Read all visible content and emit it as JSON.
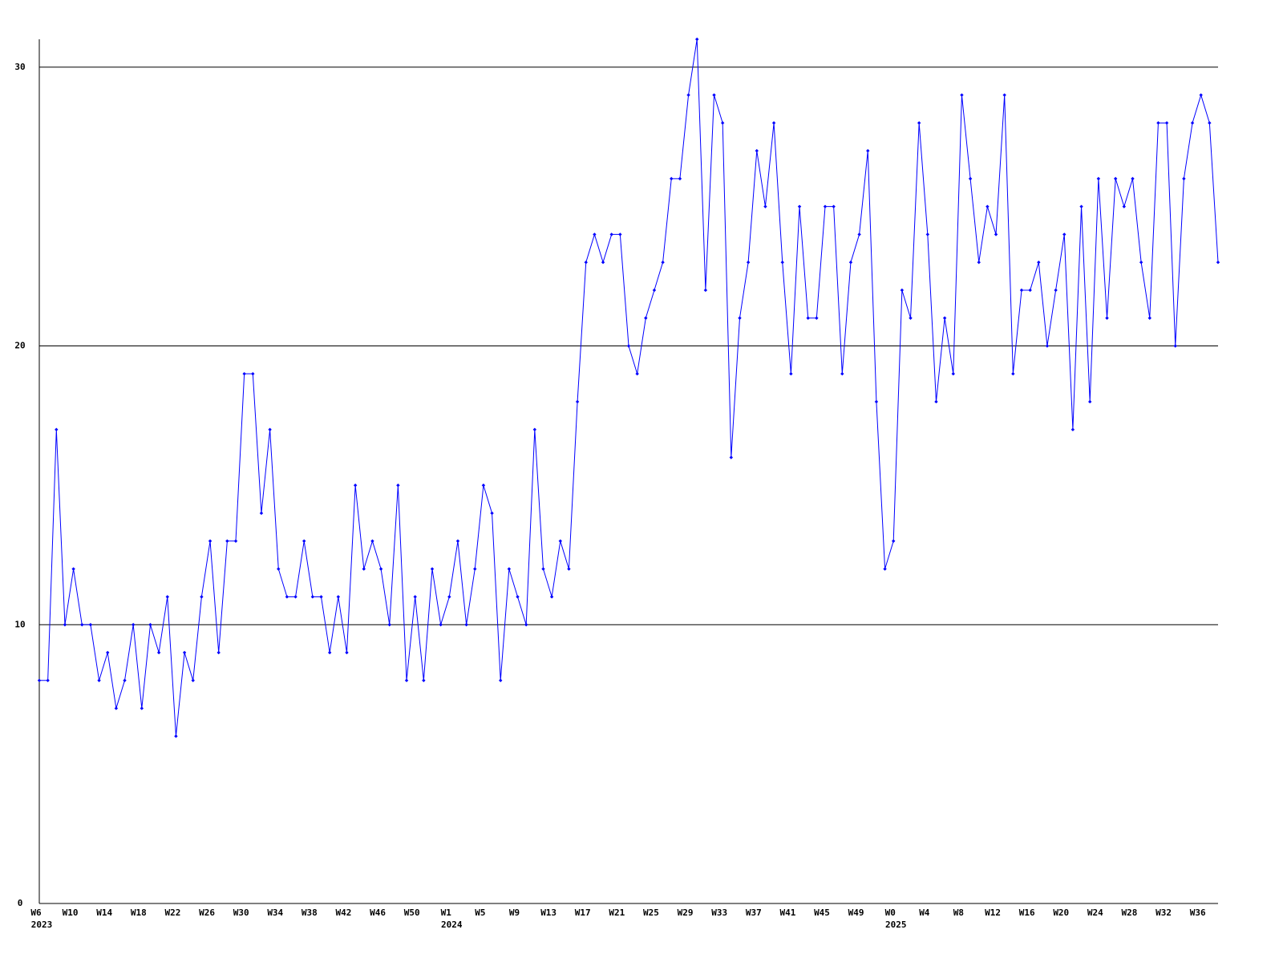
{
  "chart_data": {
    "type": "line",
    "categories": [
      "W6",
      null,
      null,
      null,
      "W10",
      null,
      null,
      null,
      "W14",
      null,
      null,
      null,
      "W18",
      null,
      null,
      null,
      "W22",
      null,
      null,
      null,
      "W26",
      null,
      null,
      null,
      "W30",
      null,
      null,
      null,
      "W34",
      null,
      null,
      null,
      "W38",
      null,
      null,
      null,
      "W42",
      null,
      null,
      null,
      "W46",
      null,
      null,
      null,
      "W50",
      null,
      null,
      null,
      "W1",
      null,
      null,
      null,
      "W5",
      null,
      null,
      null,
      "W9",
      null,
      null,
      null,
      "W13",
      null,
      null,
      null,
      "W17",
      null,
      null,
      null,
      "W21",
      null,
      null,
      null,
      "W25",
      null,
      null,
      null,
      "W29",
      null,
      null,
      null,
      "W33",
      null,
      null,
      null,
      "W37",
      null,
      null,
      null,
      "W41",
      null,
      null,
      null,
      "W45",
      null,
      null,
      null,
      "W49",
      null,
      null,
      null,
      "W0",
      null,
      null,
      null,
      "W4",
      null,
      null,
      null,
      "W8",
      null,
      null,
      null,
      "W12",
      null,
      null,
      null,
      "W16",
      null,
      null,
      null,
      "W20",
      null,
      null,
      null,
      "W24",
      null,
      null,
      null,
      "W28",
      null,
      null,
      null,
      "W32",
      null,
      null,
      null,
      "W36",
      null,
      null
    ],
    "x_sublabels": [
      "2023",
      null,
      null,
      null,
      null,
      null,
      null,
      null,
      null,
      null,
      null,
      null,
      null,
      null,
      null,
      null,
      null,
      null,
      null,
      null,
      null,
      null,
      null,
      null,
      null,
      null,
      null,
      null,
      null,
      null,
      null,
      null,
      null,
      null,
      null,
      null,
      null,
      null,
      null,
      null,
      null,
      null,
      null,
      null,
      null,
      null,
      null,
      null,
      "2024",
      null,
      null,
      null,
      null,
      null,
      null,
      null,
      null,
      null,
      null,
      null,
      null,
      null,
      null,
      null,
      null,
      null,
      null,
      null,
      null,
      null,
      null,
      null,
      null,
      null,
      null,
      null,
      null,
      null,
      null,
      null,
      null,
      null,
      null,
      null,
      null,
      null,
      null,
      null,
      null,
      null,
      null,
      null,
      null,
      null,
      null,
      null,
      null,
      null,
      null,
      null,
      "2025",
      null,
      null,
      null,
      null,
      null,
      null,
      null,
      null,
      null,
      null,
      null,
      null,
      null,
      null,
      null,
      null,
      null,
      null,
      null,
      null,
      null,
      null,
      null,
      null,
      null,
      null,
      null,
      null,
      null,
      null,
      null,
      null,
      null,
      null,
      null,
      null,
      null,
      null
    ],
    "series": [
      {
        "color": "#0000ff",
        "values": [
          8,
          8,
          17,
          10,
          12,
          10,
          10,
          8,
          9,
          7,
          8,
          10,
          7,
          10,
          9,
          11,
          6,
          9,
          8,
          11,
          13,
          9,
          13,
          13,
          19,
          19,
          14,
          17,
          12,
          11,
          11,
          13,
          11,
          11,
          9,
          11,
          9,
          15,
          12,
          13,
          12,
          10,
          15,
          8,
          11,
          8,
          12,
          10,
          11,
          13,
          10,
          12,
          15,
          14,
          8,
          12,
          11,
          10,
          17,
          12,
          11,
          13,
          12,
          18,
          23,
          24,
          23,
          24,
          24,
          20,
          19,
          21,
          22,
          23,
          26,
          26,
          29,
          31,
          22,
          29,
          28,
          16,
          21,
          23,
          27,
          25,
          28,
          23,
          19,
          25,
          21,
          21,
          25,
          25,
          19,
          23,
          24,
          27,
          18,
          12,
          13,
          22,
          21,
          28,
          24,
          18,
          21,
          19,
          29,
          26,
          23,
          25,
          24,
          29,
          19,
          22,
          22,
          23,
          20,
          22,
          24,
          17,
          25,
          18,
          26,
          21,
          26,
          25,
          26,
          23,
          21,
          28,
          28,
          20,
          26,
          28,
          29,
          28,
          23
        ]
      }
    ],
    "ylim": [
      0,
      31
    ],
    "yticks": [
      0,
      10,
      20,
      30
    ],
    "grid": true
  }
}
